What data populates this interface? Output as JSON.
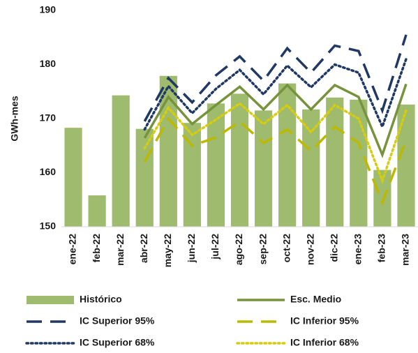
{
  "chart_data": {
    "type": "bar",
    "y_label": "GWh-mes",
    "categories": [
      "ene-22",
      "feb-22",
      "mar-22",
      "abr-22",
      "may-22",
      "jun-22",
      "jul-22",
      "ago-22",
      "sep-22",
      "oct-22",
      "nov-22",
      "dic-22",
      "ene-23",
      "feb-23",
      "mar-23"
    ],
    "ylim": [
      150,
      190
    ],
    "yticks": [
      150,
      160,
      170,
      180,
      190
    ],
    "grid": false,
    "series": [
      {
        "name": "Histórico",
        "type": "bar",
        "color": "#9fbb6e",
        "values": [
          168.3,
          155.8,
          174.3,
          168.1,
          177.9,
          169.2,
          172.8,
          174.6,
          171.5,
          176.5,
          171.7,
          173.9,
          173.5,
          160.5,
          172.6
        ]
      },
      {
        "name": "Esc. Medio",
        "type": "line",
        "dash": "solid",
        "color": "#77933c",
        "values": [
          null,
          null,
          null,
          166.4,
          174.0,
          169.0,
          172.5,
          175.9,
          171.7,
          176.2,
          171.7,
          176.2,
          174.0,
          163.3,
          176.4
        ]
      },
      {
        "name": "IC Superior 95%",
        "type": "line",
        "dash": "dashed",
        "color": "#1f3864",
        "values": [
          null,
          null,
          null,
          169.5,
          177.5,
          173.0,
          178.0,
          181.5,
          177.0,
          183.0,
          178.5,
          183.5,
          182.5,
          171.5,
          185.5
        ]
      },
      {
        "name": "IC Inferior 95%",
        "type": "line",
        "dash": "dashed",
        "color": "#bdb800",
        "values": [
          null,
          null,
          null,
          162.0,
          170.0,
          165.0,
          166.5,
          169.5,
          165.5,
          168.0,
          164.0,
          168.5,
          165.5,
          154.5,
          166.0
        ]
      },
      {
        "name": "IC Superior 68%",
        "type": "line",
        "dash": "dotted",
        "color": "#1f3864",
        "values": [
          null,
          null,
          null,
          168.0,
          176.0,
          171.0,
          175.5,
          179.0,
          174.5,
          179.8,
          175.8,
          180.0,
          178.5,
          168.5,
          181.0
        ]
      },
      {
        "name": "IC Inferior 68%",
        "type": "line",
        "dash": "dotted",
        "color": "#d6cc10",
        "values": [
          null,
          null,
          null,
          164.5,
          172.0,
          167.0,
          169.8,
          172.8,
          169.0,
          172.5,
          167.5,
          172.5,
          170.0,
          158.5,
          171.5
        ]
      }
    ]
  }
}
